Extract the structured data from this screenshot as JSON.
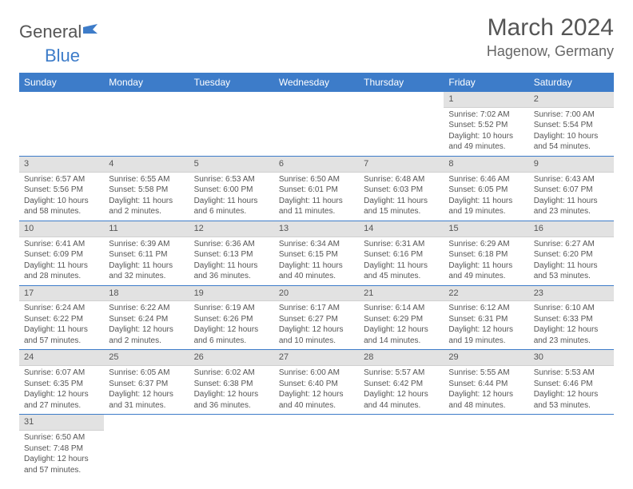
{
  "logo": {
    "text1": "General",
    "text2": "Blue"
  },
  "title": "March 2024",
  "location": "Hagenow, Germany",
  "colors": {
    "accent": "#3d7cc9",
    "daybar": "#e2e2e2",
    "text": "#555555"
  },
  "weekdays": [
    "Sunday",
    "Monday",
    "Tuesday",
    "Wednesday",
    "Thursday",
    "Friday",
    "Saturday"
  ],
  "weeks": [
    [
      null,
      null,
      null,
      null,
      null,
      {
        "n": "1",
        "sr": "Sunrise: 7:02 AM",
        "ss": "Sunset: 5:52 PM",
        "d1": "Daylight: 10 hours",
        "d2": "and 49 minutes."
      },
      {
        "n": "2",
        "sr": "Sunrise: 7:00 AM",
        "ss": "Sunset: 5:54 PM",
        "d1": "Daylight: 10 hours",
        "d2": "and 54 minutes."
      }
    ],
    [
      {
        "n": "3",
        "sr": "Sunrise: 6:57 AM",
        "ss": "Sunset: 5:56 PM",
        "d1": "Daylight: 10 hours",
        "d2": "and 58 minutes."
      },
      {
        "n": "4",
        "sr": "Sunrise: 6:55 AM",
        "ss": "Sunset: 5:58 PM",
        "d1": "Daylight: 11 hours",
        "d2": "and 2 minutes."
      },
      {
        "n": "5",
        "sr": "Sunrise: 6:53 AM",
        "ss": "Sunset: 6:00 PM",
        "d1": "Daylight: 11 hours",
        "d2": "and 6 minutes."
      },
      {
        "n": "6",
        "sr": "Sunrise: 6:50 AM",
        "ss": "Sunset: 6:01 PM",
        "d1": "Daylight: 11 hours",
        "d2": "and 11 minutes."
      },
      {
        "n": "7",
        "sr": "Sunrise: 6:48 AM",
        "ss": "Sunset: 6:03 PM",
        "d1": "Daylight: 11 hours",
        "d2": "and 15 minutes."
      },
      {
        "n": "8",
        "sr": "Sunrise: 6:46 AM",
        "ss": "Sunset: 6:05 PM",
        "d1": "Daylight: 11 hours",
        "d2": "and 19 minutes."
      },
      {
        "n": "9",
        "sr": "Sunrise: 6:43 AM",
        "ss": "Sunset: 6:07 PM",
        "d1": "Daylight: 11 hours",
        "d2": "and 23 minutes."
      }
    ],
    [
      {
        "n": "10",
        "sr": "Sunrise: 6:41 AM",
        "ss": "Sunset: 6:09 PM",
        "d1": "Daylight: 11 hours",
        "d2": "and 28 minutes."
      },
      {
        "n": "11",
        "sr": "Sunrise: 6:39 AM",
        "ss": "Sunset: 6:11 PM",
        "d1": "Daylight: 11 hours",
        "d2": "and 32 minutes."
      },
      {
        "n": "12",
        "sr": "Sunrise: 6:36 AM",
        "ss": "Sunset: 6:13 PM",
        "d1": "Daylight: 11 hours",
        "d2": "and 36 minutes."
      },
      {
        "n": "13",
        "sr": "Sunrise: 6:34 AM",
        "ss": "Sunset: 6:15 PM",
        "d1": "Daylight: 11 hours",
        "d2": "and 40 minutes."
      },
      {
        "n": "14",
        "sr": "Sunrise: 6:31 AM",
        "ss": "Sunset: 6:16 PM",
        "d1": "Daylight: 11 hours",
        "d2": "and 45 minutes."
      },
      {
        "n": "15",
        "sr": "Sunrise: 6:29 AM",
        "ss": "Sunset: 6:18 PM",
        "d1": "Daylight: 11 hours",
        "d2": "and 49 minutes."
      },
      {
        "n": "16",
        "sr": "Sunrise: 6:27 AM",
        "ss": "Sunset: 6:20 PM",
        "d1": "Daylight: 11 hours",
        "d2": "and 53 minutes."
      }
    ],
    [
      {
        "n": "17",
        "sr": "Sunrise: 6:24 AM",
        "ss": "Sunset: 6:22 PM",
        "d1": "Daylight: 11 hours",
        "d2": "and 57 minutes."
      },
      {
        "n": "18",
        "sr": "Sunrise: 6:22 AM",
        "ss": "Sunset: 6:24 PM",
        "d1": "Daylight: 12 hours",
        "d2": "and 2 minutes."
      },
      {
        "n": "19",
        "sr": "Sunrise: 6:19 AM",
        "ss": "Sunset: 6:26 PM",
        "d1": "Daylight: 12 hours",
        "d2": "and 6 minutes."
      },
      {
        "n": "20",
        "sr": "Sunrise: 6:17 AM",
        "ss": "Sunset: 6:27 PM",
        "d1": "Daylight: 12 hours",
        "d2": "and 10 minutes."
      },
      {
        "n": "21",
        "sr": "Sunrise: 6:14 AM",
        "ss": "Sunset: 6:29 PM",
        "d1": "Daylight: 12 hours",
        "d2": "and 14 minutes."
      },
      {
        "n": "22",
        "sr": "Sunrise: 6:12 AM",
        "ss": "Sunset: 6:31 PM",
        "d1": "Daylight: 12 hours",
        "d2": "and 19 minutes."
      },
      {
        "n": "23",
        "sr": "Sunrise: 6:10 AM",
        "ss": "Sunset: 6:33 PM",
        "d1": "Daylight: 12 hours",
        "d2": "and 23 minutes."
      }
    ],
    [
      {
        "n": "24",
        "sr": "Sunrise: 6:07 AM",
        "ss": "Sunset: 6:35 PM",
        "d1": "Daylight: 12 hours",
        "d2": "and 27 minutes."
      },
      {
        "n": "25",
        "sr": "Sunrise: 6:05 AM",
        "ss": "Sunset: 6:37 PM",
        "d1": "Daylight: 12 hours",
        "d2": "and 31 minutes."
      },
      {
        "n": "26",
        "sr": "Sunrise: 6:02 AM",
        "ss": "Sunset: 6:38 PM",
        "d1": "Daylight: 12 hours",
        "d2": "and 36 minutes."
      },
      {
        "n": "27",
        "sr": "Sunrise: 6:00 AM",
        "ss": "Sunset: 6:40 PM",
        "d1": "Daylight: 12 hours",
        "d2": "and 40 minutes."
      },
      {
        "n": "28",
        "sr": "Sunrise: 5:57 AM",
        "ss": "Sunset: 6:42 PM",
        "d1": "Daylight: 12 hours",
        "d2": "and 44 minutes."
      },
      {
        "n": "29",
        "sr": "Sunrise: 5:55 AM",
        "ss": "Sunset: 6:44 PM",
        "d1": "Daylight: 12 hours",
        "d2": "and 48 minutes."
      },
      {
        "n": "30",
        "sr": "Sunrise: 5:53 AM",
        "ss": "Sunset: 6:46 PM",
        "d1": "Daylight: 12 hours",
        "d2": "and 53 minutes."
      }
    ],
    [
      {
        "n": "31",
        "sr": "Sunrise: 6:50 AM",
        "ss": "Sunset: 7:48 PM",
        "d1": "Daylight: 12 hours",
        "d2": "and 57 minutes."
      },
      null,
      null,
      null,
      null,
      null,
      null
    ]
  ]
}
